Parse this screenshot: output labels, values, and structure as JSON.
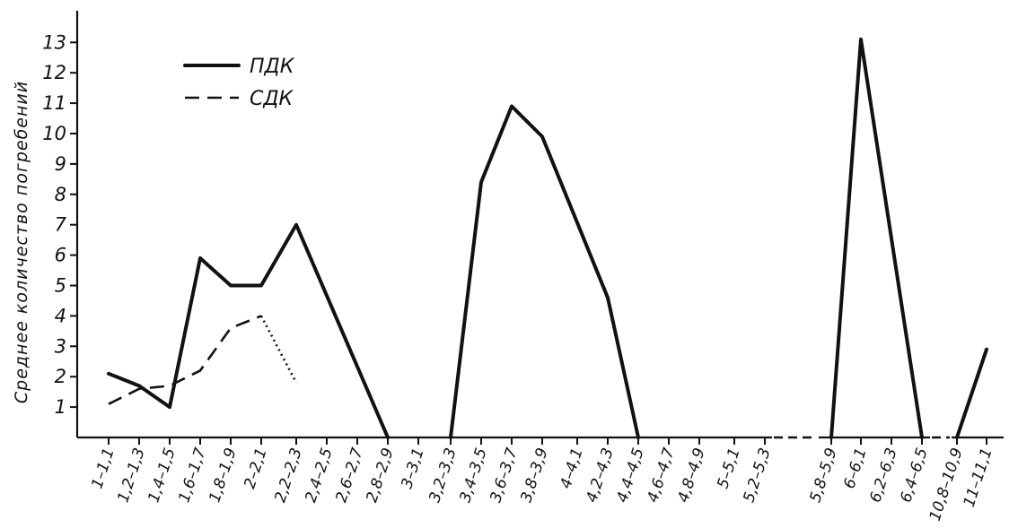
{
  "chart_data": {
    "type": "line",
    "ylabel": "Среднее количество погребений",
    "ylim": [
      0,
      13
    ],
    "yticks": [
      "1",
      "2",
      "3",
      "4",
      "5",
      "6",
      "7",
      "8",
      "9",
      "10",
      "11",
      "12",
      "13"
    ],
    "categories": [
      "1–1,1",
      "1,2–1,3",
      "1,4–1,5",
      "1,6–1,7",
      "1,8–1,9",
      "2–2,1",
      "2,2–2,3",
      "2,4–2,5",
      "2,6–2,7",
      "2,8–2,9",
      "3–3,1",
      "3,2–3,3",
      "3,4–3,5",
      "3,6–3,7",
      "3,8–3,9",
      "4–4,1",
      "4,2–4,3",
      "4,4–4,5",
      "4,6–4,7",
      "4,8–4,9",
      "5–5,1",
      "5,2–5,3",
      "5,8–5,9",
      "6–6,1",
      "6,2–6,3",
      "6,4–6,5",
      "10,8–10,9",
      "11–11,1"
    ],
    "series": [
      {
        "name": "ПДК",
        "values": [
          2.1,
          1.7,
          1.0,
          5.9,
          5.0,
          5.0,
          7.0,
          null,
          null,
          0,
          null,
          0,
          8.4,
          10.9,
          9.9,
          null,
          4.6,
          0,
          null,
          null,
          null,
          null,
          0,
          13.1,
          null,
          0,
          0,
          2.9
        ]
      },
      {
        "name": "СДК",
        "values": [
          1.1,
          1.6,
          1.7,
          2.2,
          3.6,
          4.0,
          1.8,
          null,
          null,
          null,
          null,
          null,
          null,
          null,
          null,
          null,
          null,
          null,
          null,
          null,
          null,
          null,
          null,
          null,
          null,
          null,
          null,
          null
        ]
      }
    ],
    "legend": "top-left"
  }
}
